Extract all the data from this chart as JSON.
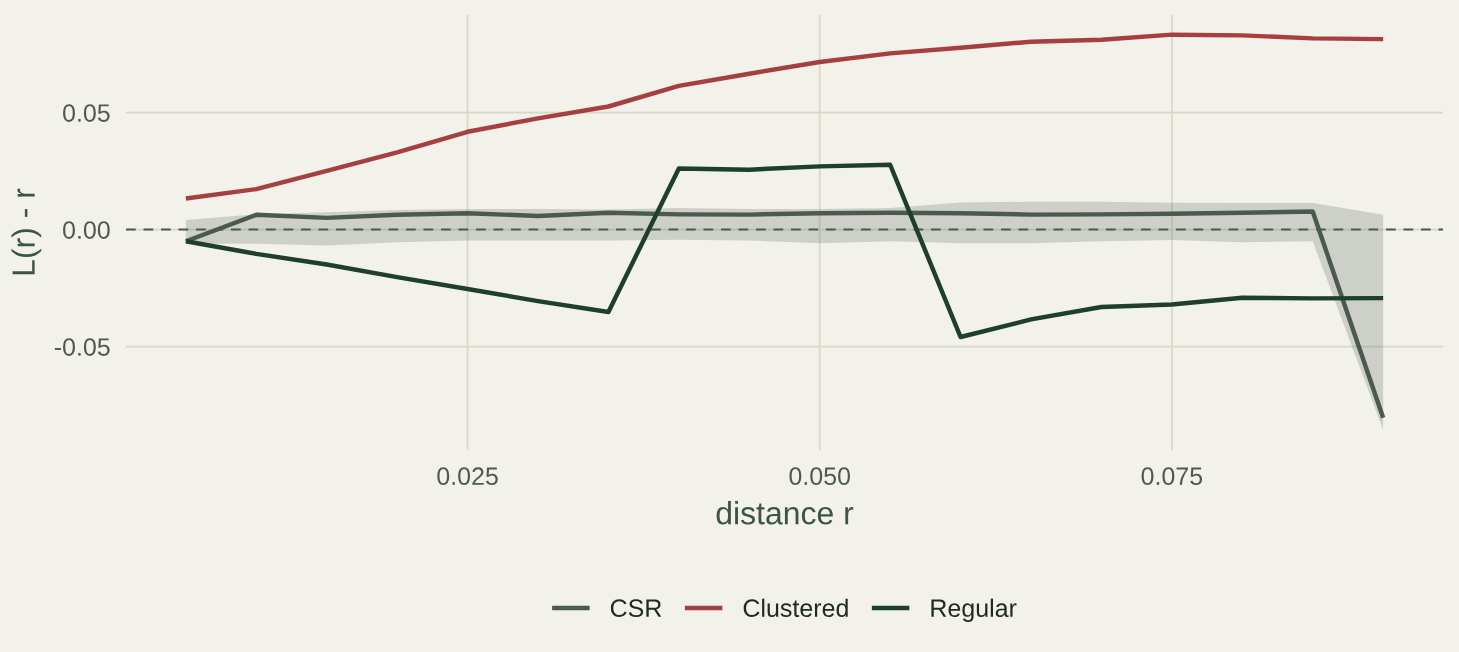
{
  "chart_data": {
    "type": "line",
    "xlabel": "distance r",
    "ylabel": "L(r) - r",
    "x": [
      0.005,
      0.01,
      0.015,
      0.02,
      0.025,
      0.03,
      0.035,
      0.04,
      0.045,
      0.05,
      0.055,
      0.06,
      0.065,
      0.07,
      0.075,
      0.08,
      0.085,
      0.09
    ],
    "series": [
      {
        "name": "CSR",
        "color": "#4b5a50",
        "values": [
          -0.005,
          0.0063,
          0.005,
          0.0063,
          0.007,
          0.0058,
          0.0072,
          0.0065,
          0.0064,
          0.007,
          0.0072,
          0.007,
          0.0064,
          0.0065,
          0.0068,
          0.0072,
          0.0077,
          -0.0804
        ],
        "upper": [
          0.0041,
          0.0066,
          0.0074,
          0.0084,
          0.0088,
          0.0088,
          0.0086,
          0.0092,
          0.0088,
          0.0088,
          0.0092,
          0.0116,
          0.0119,
          0.0119,
          0.0115,
          0.0114,
          0.0114,
          0.0063
        ],
        "lower": [
          -0.0061,
          -0.0061,
          -0.0068,
          -0.0054,
          -0.0047,
          -0.0047,
          -0.0047,
          -0.0044,
          -0.0047,
          -0.0058,
          -0.005,
          -0.0058,
          -0.0058,
          -0.005,
          -0.0045,
          -0.0054,
          -0.005,
          -0.0857
        ]
      },
      {
        "name": "Clustered",
        "color": "#a63f40",
        "values": [
          0.0133,
          0.0173,
          0.0251,
          0.033,
          0.0418,
          0.0475,
          0.0526,
          0.0614,
          0.0666,
          0.0716,
          0.0753,
          0.0777,
          0.0803,
          0.0811,
          0.0833,
          0.083,
          0.0817,
          0.0814
        ]
      },
      {
        "name": "Regular",
        "color": "#1e3f2b",
        "values": [
          -0.005,
          -0.0104,
          -0.0149,
          -0.0203,
          -0.0254,
          -0.0306,
          -0.0352,
          0.0261,
          0.0256,
          0.027,
          0.0277,
          -0.0459,
          -0.0384,
          -0.0331,
          -0.032,
          -0.0291,
          -0.0294,
          -0.0293
        ]
      }
    ],
    "xlim": [
      0.00075,
      0.09425
    ],
    "ylim": [
      -0.0942,
      0.0917
    ],
    "xticks": [
      0.025,
      {
        "value": 0.05,
        "label": "0.050"
      },
      0.075
    ],
    "yticks": [
      {
        "value": -0.05,
        "label": "-0.05"
      },
      {
        "value": 0,
        "label": "0.00"
      },
      0.05
    ],
    "ref_lines": [
      {
        "axis": "y",
        "value": 0,
        "color": "#4b5a50",
        "line_style": "dashed"
      }
    ],
    "grid": true,
    "legend": "bottom",
    "line_style": "solid"
  }
}
